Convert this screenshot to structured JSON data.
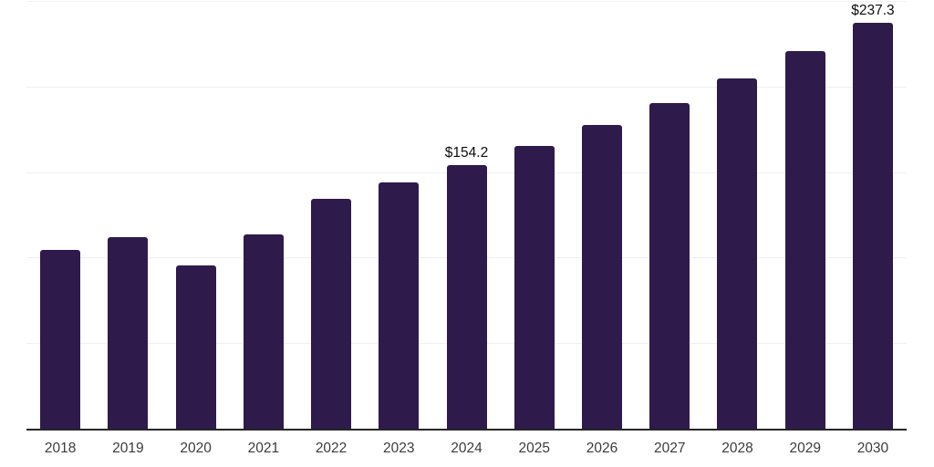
{
  "chart": {
    "background_color": "#ffffff",
    "bar_color": "#2f1a4c",
    "axis_line_color": "#262626",
    "gridline_color": "#f0f0f0",
    "tick_label_color": "#3c3c3c",
    "value_label_color": "#0d0d0d"
  },
  "chart_data": {
    "type": "bar",
    "title": "",
    "xlabel": "",
    "ylabel": "",
    "categories": [
      "2018",
      "2019",
      "2020",
      "2021",
      "2022",
      "2023",
      "2024",
      "2025",
      "2026",
      "2027",
      "2028",
      "2029",
      "2030"
    ],
    "values": [
      104.4,
      111.9,
      95.6,
      113.4,
      134.2,
      143.9,
      154.2,
      165.3,
      177.4,
      190.4,
      204.9,
      220.5,
      237.3
    ],
    "point_labels": [
      {
        "category": "2024",
        "text": "$154.2"
      },
      {
        "category": "2030",
        "text": "$237.3"
      }
    ],
    "ylim": [
      0,
      250
    ],
    "y_gridlines_at": [
      50,
      100,
      150,
      200,
      250
    ],
    "y_tick_labels_shown": false,
    "grid": "horizontal",
    "legend_position": "none"
  }
}
